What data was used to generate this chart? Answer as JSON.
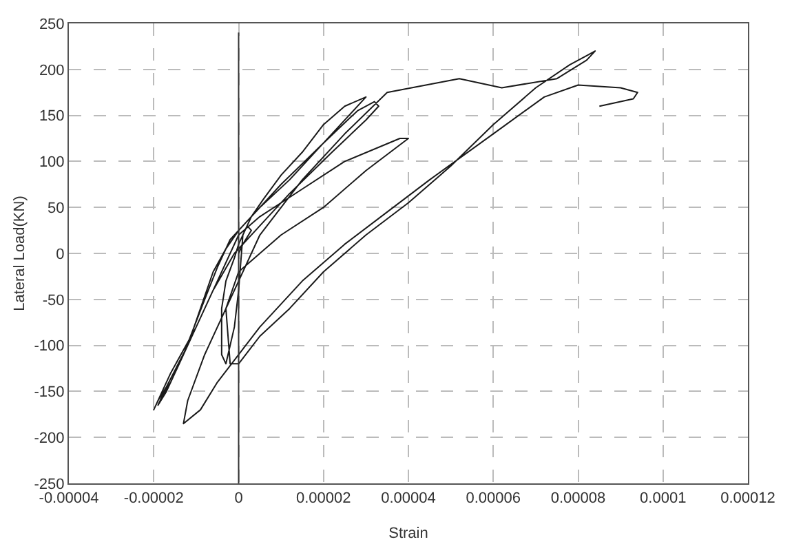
{
  "chart_data": {
    "type": "line",
    "xlabel": "Strain",
    "ylabel": "Lateral Load(KN)",
    "xlim": [
      -4e-05,
      0.00012
    ],
    "ylim": [
      -250,
      250
    ],
    "xticks": [
      {
        "value": -4e-05,
        "label": "-0.00004"
      },
      {
        "value": -2e-05,
        "label": "-0.00002"
      },
      0,
      {
        "value": 2e-05,
        "label": "0.00002"
      },
      {
        "value": 4e-05,
        "label": "0.00004"
      },
      {
        "value": 6e-05,
        "label": "0.00006"
      },
      {
        "value": 8e-05,
        "label": "0.00008"
      },
      {
        "value": 0.0001,
        "label": "0.0001"
      },
      {
        "value": 0.00012,
        "label": "0.00012"
      }
    ],
    "yticks": [
      -250,
      -200,
      -150,
      -100,
      -50,
      0,
      50,
      100,
      150,
      200,
      250
    ],
    "grid": true,
    "marker": "none",
    "line_style": "solid",
    "ref_lines": [
      {
        "axis": "x",
        "value": 0,
        "color": "#333333"
      }
    ],
    "series": [
      {
        "color": "#1a1a1a",
        "x": [
          0,
          1e-06,
          3e-06,
          2e-06,
          0,
          -1e-06,
          -3e-06,
          -4e-06,
          -4e-06,
          -3e-06,
          -1e-06,
          0,
          1e-06,
          3e-06,
          6e-06,
          1e-05,
          1.5e-05,
          2e-05,
          2.5e-05,
          3e-05,
          2.6e-05,
          2e-05,
          1.2e-05,
          5e-06,
          0,
          -3e-06,
          -6e-06,
          -9e-06,
          -1.2e-05,
          -1.6e-05,
          -1.8e-05,
          -1.9e-05,
          -1.7e-05,
          -1.3e-05,
          -8e-06,
          -5e-06,
          -2e-06,
          3e-06,
          1e-05,
          2e-05,
          2.8e-05,
          3.2e-05,
          3.3e-05,
          3e-05,
          2.2e-05,
          1.2e-05,
          5e-06,
          -1e-06,
          -6e-06,
          -1.2e-05,
          -1.7e-05,
          -1.9e-05,
          -2e-05,
          -1.6e-05,
          -1e-05,
          -5e-06,
          0,
          5e-06,
          1.5e-05,
          2.5e-05,
          3.8e-05,
          4e-05,
          3e-05,
          2e-05,
          1e-05,
          0,
          -3e-06,
          -2e-06,
          0,
          5e-06,
          1.2e-05,
          2e-05,
          3e-05,
          4e-05,
          5e-05,
          6e-05,
          7e-05,
          7.8e-05,
          8.2e-05,
          8.4e-05,
          8.2e-05,
          7.5e-05,
          6.2e-05,
          5.2e-05,
          3.5e-05,
          2.5e-05,
          1.5e-05,
          5e-06,
          -2e-06,
          -8e-06,
          -1.2e-05,
          -1.3e-05,
          -9e-06,
          -5e-06,
          5e-06,
          1.5e-05,
          2.5e-05,
          3.5e-05,
          4.5e-05,
          6e-05,
          7.2e-05,
          8e-05,
          9e-05,
          9.4e-05,
          9.3e-05,
          8.5e-05
        ],
        "values": [
          0,
          10,
          25,
          30,
          10,
          -5,
          -30,
          -60,
          -110,
          -120,
          -80,
          -40,
          20,
          40,
          60,
          85,
          110,
          140,
          160,
          170,
          150,
          120,
          80,
          50,
          25,
          5,
          -20,
          -60,
          -100,
          -140,
          -155,
          -165,
          -150,
          -110,
          -50,
          -15,
          15,
          40,
          75,
          120,
          155,
          165,
          160,
          145,
          110,
          65,
          30,
          0,
          -40,
          -100,
          -145,
          -160,
          -170,
          -130,
          -80,
          -30,
          20,
          40,
          70,
          100,
          125,
          125,
          90,
          50,
          20,
          -20,
          -60,
          -120,
          -120,
          -90,
          -60,
          -20,
          20,
          55,
          95,
          140,
          180,
          205,
          215,
          220,
          210,
          190,
          180,
          190,
          175,
          130,
          80,
          20,
          -50,
          -110,
          -160,
          -185,
          -170,
          -140,
          -80,
          -30,
          10,
          45,
          80,
          130,
          170,
          183,
          180,
          175,
          168,
          160
        ]
      }
    ]
  }
}
